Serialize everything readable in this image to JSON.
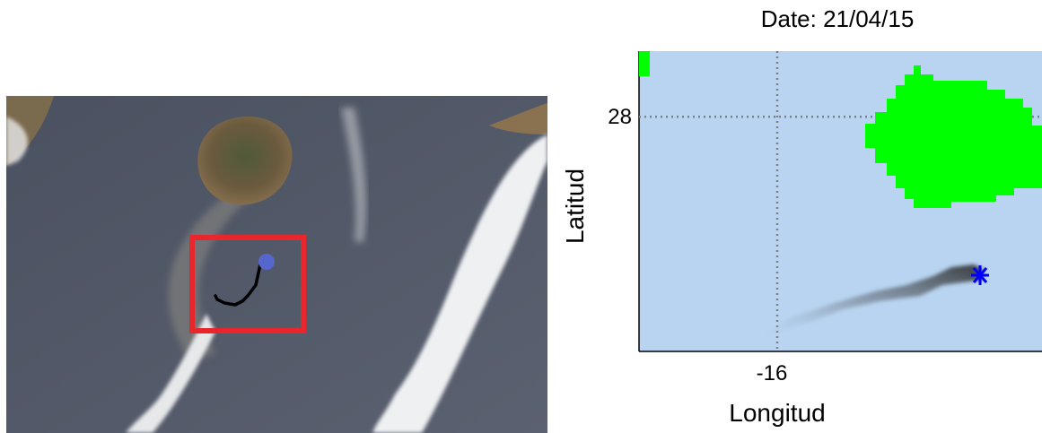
{
  "map_panel": {
    "title": "Date: 21/04/15",
    "x_label": "Longitud",
    "y_label": "Latitud",
    "xlim": [
      -16.343,
      -15.343
    ],
    "ylim": [
      27.417,
      28.163
    ],
    "xticks": [
      -16
    ],
    "yticks": [
      28
    ],
    "grid": true
  }
}
